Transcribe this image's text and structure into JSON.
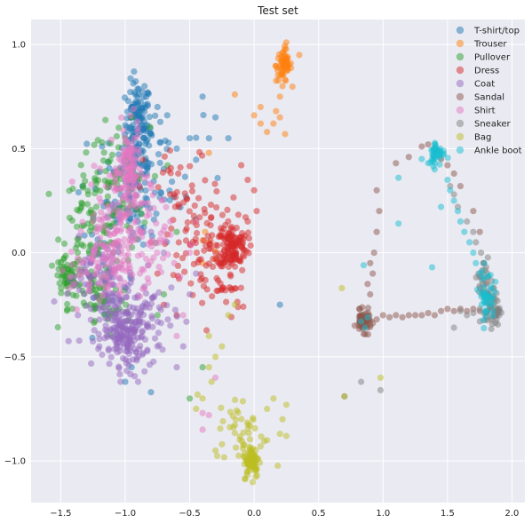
{
  "chart_data": {
    "type": "scatter",
    "title": "Test set",
    "xlabel": "",
    "ylabel": "",
    "xlim": [
      -1.73,
      2.1
    ],
    "ylim": [
      -1.2,
      1.12
    ],
    "xticks": [
      -1.5,
      -1.0,
      -0.5,
      0.0,
      0.5,
      1.0,
      1.5,
      2.0
    ],
    "xtick_labels": [
      "−1.5",
      "−1.0",
      "−0.5",
      "0.0",
      "0.5",
      "1.0",
      "1.5",
      "2.0"
    ],
    "yticks": [
      -1.0,
      -0.5,
      0.0,
      0.5,
      1.0
    ],
    "ytick_labels": [
      "−1.0",
      "−0.5",
      "0.0",
      "0.5",
      "1.0"
    ],
    "grid": true,
    "legend_position": "top-right",
    "marker_alpha": 0.5,
    "series": [
      {
        "name": "T-shirt/top",
        "color": "#1f77b4",
        "clusters": [
          {
            "cx": -0.9,
            "cy": 0.62,
            "sx": 0.05,
            "sy": 0.1,
            "n": 120
          },
          {
            "cx": -0.95,
            "cy": 0.35,
            "sx": 0.1,
            "sy": 0.15,
            "n": 100
          },
          {
            "cx": -0.7,
            "cy": 0.4,
            "sx": 0.15,
            "sy": 0.15,
            "n": 40
          },
          {
            "cx": -1.1,
            "cy": 0.1,
            "sx": 0.15,
            "sy": 0.15,
            "n": 40
          }
        ],
        "points": [
          [
            -0.3,
            0.65
          ],
          [
            -0.35,
            0.55
          ],
          [
            -0.2,
            0.55
          ],
          [
            0.2,
            -0.25
          ],
          [
            -0.4,
            0.75
          ],
          [
            -0.5,
            0.55
          ],
          [
            -0.6,
            0.5
          ],
          [
            -0.95,
            -0.55
          ],
          [
            -1.0,
            -0.62
          ],
          [
            -0.8,
            -0.67
          ],
          [
            -0.85,
            0.8
          ],
          [
            -0.75,
            0.7
          ]
        ]
      },
      {
        "name": "Trouser",
        "color": "#ff7f0e",
        "clusters": [
          {
            "cx": 0.23,
            "cy": 0.9,
            "sx": 0.03,
            "sy": 0.04,
            "n": 60
          }
        ],
        "points": [
          [
            0.25,
            1.01
          ],
          [
            0.35,
            0.95
          ],
          [
            0.22,
            0.8
          ],
          [
            0.2,
            0.75
          ],
          [
            0.17,
            0.68
          ],
          [
            0.15,
            0.62
          ],
          [
            0.1,
            0.58
          ],
          [
            0.05,
            0.62
          ],
          [
            0.0,
            0.66
          ],
          [
            0.05,
            0.7
          ],
          [
            0.2,
            0.65
          ],
          [
            0.24,
            0.57
          ],
          [
            -0.15,
            0.76
          ],
          [
            -0.35,
            0.48
          ],
          [
            -0.4,
            0.06
          ],
          [
            -0.35,
            0.05
          ],
          [
            -0.3,
            -0.03
          ],
          [
            -0.38,
            0.1
          ],
          [
            -0.45,
            0.15
          ],
          [
            -0.4,
            -0.05
          ],
          [
            -0.3,
            0.01
          ]
        ]
      },
      {
        "name": "Pullover",
        "color": "#2ca02c",
        "clusters": [
          {
            "cx": -1.45,
            "cy": -0.12,
            "sx": 0.05,
            "sy": 0.05,
            "n": 50
          },
          {
            "cx": -1.25,
            "cy": 0.1,
            "sx": 0.12,
            "sy": 0.18,
            "n": 110
          },
          {
            "cx": -1.05,
            "cy": 0.3,
            "sx": 0.12,
            "sy": 0.15,
            "n": 60
          },
          {
            "cx": -1.2,
            "cy": -0.25,
            "sx": 0.12,
            "sy": 0.08,
            "n": 50
          }
        ],
        "points": [
          [
            -1.0,
            0.55
          ],
          [
            -1.05,
            0.6
          ],
          [
            -1.1,
            0.47
          ],
          [
            -0.95,
            0.65
          ],
          [
            -0.5,
            -0.7
          ],
          [
            -0.4,
            -0.55
          ],
          [
            -0.7,
            -0.2
          ],
          [
            -0.75,
            -0.3
          ],
          [
            -0.6,
            0.1
          ]
        ]
      },
      {
        "name": "Dress",
        "color": "#d62728",
        "clusters": [
          {
            "cx": -0.17,
            "cy": 0.03,
            "sx": 0.06,
            "sy": 0.05,
            "n": 110
          },
          {
            "cx": -0.4,
            "cy": 0.05,
            "sx": 0.15,
            "sy": 0.12,
            "n": 80
          },
          {
            "cx": -0.3,
            "cy": -0.15,
            "sx": 0.15,
            "sy": 0.1,
            "n": 40
          },
          {
            "cx": -0.55,
            "cy": 0.3,
            "sx": 0.15,
            "sy": 0.1,
            "n": 30
          }
        ],
        "points": [
          [
            -0.05,
            0.35
          ],
          [
            -0.1,
            0.42
          ],
          [
            0.0,
            0.3
          ],
          [
            0.02,
            0.2
          ],
          [
            -0.05,
            0.15
          ],
          [
            -0.6,
            -0.3
          ],
          [
            -0.7,
            -0.25
          ],
          [
            -0.75,
            -0.1
          ],
          [
            -0.8,
            0.05
          ]
        ]
      },
      {
        "name": "Coat",
        "color": "#9467bd",
        "clusters": [
          {
            "cx": -1.0,
            "cy": -0.4,
            "sx": 0.08,
            "sy": 0.07,
            "n": 140
          },
          {
            "cx": -1.1,
            "cy": -0.25,
            "sx": 0.12,
            "sy": 0.1,
            "n": 90
          },
          {
            "cx": -0.8,
            "cy": -0.3,
            "sx": 0.1,
            "sy": 0.1,
            "n": 50
          },
          {
            "cx": -1.25,
            "cy": -0.1,
            "sx": 0.1,
            "sy": 0.08,
            "n": 40
          }
        ],
        "points": [
          [
            -0.85,
            -0.57
          ],
          [
            -0.9,
            -0.62
          ],
          [
            -0.6,
            -0.55
          ],
          [
            -0.55,
            -0.45
          ],
          [
            -0.65,
            -0.35
          ],
          [
            -0.5,
            -0.2
          ],
          [
            -0.45,
            -0.1
          ],
          [
            -0.7,
            0.0
          ],
          [
            -0.8,
            0.1
          ],
          [
            -0.75,
            -0.45
          ],
          [
            -1.2,
            -0.45
          ],
          [
            -1.15,
            -0.35
          ]
        ]
      },
      {
        "name": "Sandal",
        "color": "#8c564b",
        "clusters": [
          {
            "cx": 0.85,
            "cy": -0.33,
            "sx": 0.03,
            "sy": 0.025,
            "n": 60
          }
        ],
        "points": [
          [
            0.95,
            -0.32
          ],
          [
            1.0,
            -0.3
          ],
          [
            1.05,
            -0.31
          ],
          [
            1.1,
            -0.3
          ],
          [
            1.15,
            -0.31
          ],
          [
            1.2,
            -0.3
          ],
          [
            1.25,
            -0.3
          ],
          [
            1.3,
            -0.3
          ],
          [
            1.35,
            -0.29
          ],
          [
            1.4,
            -0.3
          ],
          [
            1.45,
            -0.28
          ],
          [
            1.5,
            -0.27
          ],
          [
            1.55,
            -0.28
          ],
          [
            1.6,
            -0.27
          ],
          [
            1.65,
            -0.28
          ],
          [
            1.7,
            -0.27
          ],
          [
            1.75,
            -0.28
          ],
          [
            1.8,
            -0.29
          ],
          [
            0.9,
            -0.2
          ],
          [
            0.88,
            -0.15
          ],
          [
            0.92,
            -0.1
          ],
          [
            0.9,
            -0.05
          ],
          [
            0.93,
            0.0
          ],
          [
            0.95,
            0.1
          ],
          [
            0.97,
            0.2
          ],
          [
            0.95,
            0.3
          ],
          [
            1.1,
            0.43
          ],
          [
            1.2,
            0.46
          ],
          [
            1.3,
            0.51
          ],
          [
            1.35,
            0.52
          ],
          [
            1.4,
            0.5
          ],
          [
            1.45,
            0.45
          ],
          [
            1.5,
            0.42
          ],
          [
            1.55,
            0.38
          ],
          [
            1.6,
            0.32
          ],
          [
            1.7,
            0.2
          ],
          [
            1.75,
            0.1
          ],
          [
            1.78,
            -0.05
          ],
          [
            1.8,
            -0.15
          ],
          [
            0.78,
            -0.35
          ],
          [
            0.82,
            -0.27
          ]
        ]
      },
      {
        "name": "Shirt",
        "color": "#e377c2",
        "clusters": [
          {
            "cx": -0.97,
            "cy": 0.4,
            "sx": 0.04,
            "sy": 0.1,
            "n": 110
          },
          {
            "cx": -1.05,
            "cy": 0.15,
            "sx": 0.12,
            "sy": 0.15,
            "n": 120
          },
          {
            "cx": -1.2,
            "cy": -0.05,
            "sx": 0.12,
            "sy": 0.12,
            "n": 70
          },
          {
            "cx": -0.8,
            "cy": 0.05,
            "sx": 0.15,
            "sy": 0.12,
            "n": 50
          }
        ],
        "points": [
          [
            -0.93,
            0.55
          ],
          [
            -0.9,
            0.6
          ],
          [
            -0.95,
            0.5
          ],
          [
            -0.4,
            -0.77
          ],
          [
            -0.4,
            -0.85
          ],
          [
            -0.35,
            -0.78
          ],
          [
            -0.3,
            -0.6
          ],
          [
            -0.6,
            -0.4
          ],
          [
            -0.55,
            -0.3
          ],
          [
            -0.5,
            0.0
          ],
          [
            -0.45,
            0.15
          ],
          [
            -0.65,
            0.15
          ],
          [
            -1.4,
            -0.15
          ],
          [
            -1.35,
            -0.05
          ]
        ]
      },
      {
        "name": "Sneaker",
        "color": "#7f7f7f",
        "clusters": [
          {
            "cx": 1.85,
            "cy": -0.27,
            "sx": 0.03,
            "sy": 0.04,
            "n": 50
          },
          {
            "cx": 1.8,
            "cy": -0.15,
            "sx": 0.03,
            "sy": 0.06,
            "n": 30
          }
        ],
        "points": [
          [
            1.6,
            -0.28
          ],
          [
            1.65,
            -0.3
          ],
          [
            1.7,
            -0.29
          ],
          [
            1.75,
            -0.27
          ],
          [
            1.78,
            -0.05
          ],
          [
            1.76,
            0.0
          ],
          [
            1.74,
            -0.1
          ],
          [
            1.72,
            0.05
          ],
          [
            1.7,
            0.1
          ],
          [
            1.65,
            0.15
          ],
          [
            1.58,
            0.22
          ],
          [
            1.55,
            0.28
          ],
          [
            1.52,
            0.32
          ],
          [
            1.9,
            -0.3
          ],
          [
            1.88,
            -0.32
          ],
          [
            1.55,
            -0.36
          ],
          [
            0.7,
            -0.69
          ],
          [
            0.83,
            -0.62
          ],
          [
            0.98,
            -0.66
          ]
        ]
      },
      {
        "name": "Bag",
        "color": "#bcbd22",
        "clusters": [
          {
            "cx": -0.02,
            "cy": -1.0,
            "sx": 0.03,
            "sy": 0.04,
            "n": 80
          },
          {
            "cx": -0.1,
            "cy": -0.85,
            "sx": 0.1,
            "sy": 0.08,
            "n": 40
          }
        ],
        "points": [
          [
            0.25,
            -0.73
          ],
          [
            0.22,
            -0.8
          ],
          [
            0.2,
            -0.87
          ],
          [
            0.25,
            -0.88
          ],
          [
            0.15,
            -0.7
          ],
          [
            0.1,
            -0.75
          ],
          [
            -0.3,
            -0.5
          ],
          [
            -0.35,
            -0.55
          ],
          [
            -0.33,
            -0.62
          ],
          [
            -0.25,
            -0.45
          ],
          [
            -0.2,
            -0.3
          ],
          [
            -0.15,
            -0.25
          ],
          [
            -0.35,
            -0.4
          ],
          [
            -0.45,
            -0.75
          ],
          [
            -0.4,
            -0.7
          ],
          [
            0.68,
            -0.17
          ],
          [
            0.7,
            -0.69
          ],
          [
            0.98,
            -0.6
          ],
          [
            -0.3,
            -0.95
          ],
          [
            -0.25,
            -0.92
          ],
          [
            0.05,
            -0.93
          ],
          [
            0.1,
            -0.9
          ]
        ]
      },
      {
        "name": "Ankle boot",
        "color": "#17becf",
        "clusters": [
          {
            "cx": 1.42,
            "cy": 0.48,
            "sx": 0.03,
            "sy": 0.03,
            "n": 40
          },
          {
            "cx": 1.8,
            "cy": -0.2,
            "sx": 0.03,
            "sy": 0.06,
            "n": 40
          }
        ],
        "points": [
          [
            1.5,
            0.35
          ],
          [
            1.52,
            0.3
          ],
          [
            1.55,
            0.25
          ],
          [
            1.58,
            0.2
          ],
          [
            1.6,
            0.15
          ],
          [
            1.63,
            0.1
          ],
          [
            1.67,
            0.05
          ],
          [
            1.7,
            0.0
          ],
          [
            1.72,
            -0.05
          ],
          [
            1.75,
            -0.1
          ],
          [
            1.4,
            0.4
          ],
          [
            1.35,
            0.43
          ],
          [
            1.3,
            0.45
          ],
          [
            1.45,
            0.22
          ],
          [
            1.38,
            -0.07
          ],
          [
            1.12,
            0.36
          ],
          [
            1.12,
            0.14
          ],
          [
            0.85,
            -0.06
          ],
          [
            0.83,
            -0.33
          ],
          [
            0.86,
            -0.36
          ],
          [
            0.88,
            -0.31
          ],
          [
            1.85,
            -0.28
          ],
          [
            1.82,
            -0.25
          ]
        ]
      }
    ]
  }
}
